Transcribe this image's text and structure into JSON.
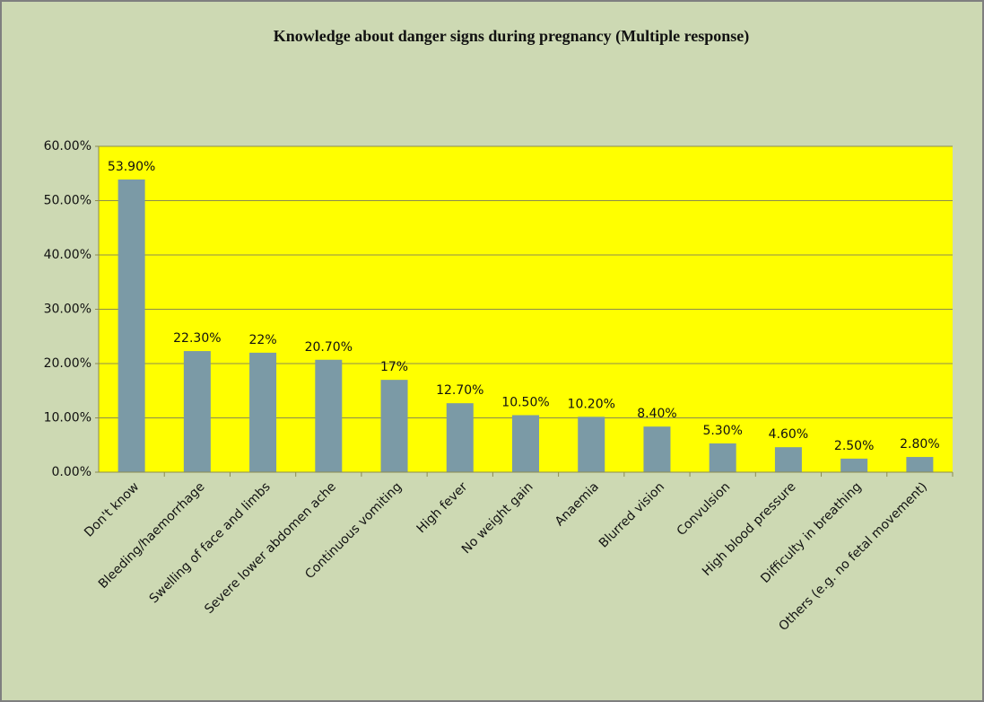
{
  "chart_data": {
    "type": "bar",
    "title": "Knowledge about danger signs during pregnancy (Multiple response)",
    "categories": [
      "Don't know",
      "Bleeding/haemorrhage",
      "Swelling of face and limbs",
      "Severe lower abdomen ache",
      "Continuous vomiting",
      "High fever",
      "No weight gain",
      "Anaemia",
      "Blurred vision",
      "Convulsion",
      "High blood pressure",
      "Difficulty in breathing",
      "Others (e.g. no fetal movement)"
    ],
    "values": [
      53.9,
      22.3,
      22,
      20.7,
      17,
      12.7,
      10.5,
      10.2,
      8.4,
      5.3,
      4.6,
      2.5,
      2.8
    ],
    "value_labels": [
      "53.90%",
      "22.30%",
      "22%",
      "20.70%",
      "17%",
      "12.70%",
      "10.50%",
      "10.20%",
      "8.40%",
      "5.30%",
      "4.60%",
      "2.50%",
      "2.80%"
    ],
    "color": "#7b9aa6",
    "ylim": [
      0,
      60
    ],
    "yticks": [
      {
        "value": 0,
        "label": "0.00%"
      },
      {
        "value": 10,
        "label": "10.00%"
      },
      {
        "value": 20,
        "label": "20.00%"
      },
      {
        "value": 30,
        "label": "30.00%"
      },
      {
        "value": 40,
        "label": "40.00%"
      },
      {
        "value": 50,
        "label": "50.00%"
      },
      {
        "value": 60,
        "label": "60.00%"
      }
    ],
    "grid": true
  }
}
